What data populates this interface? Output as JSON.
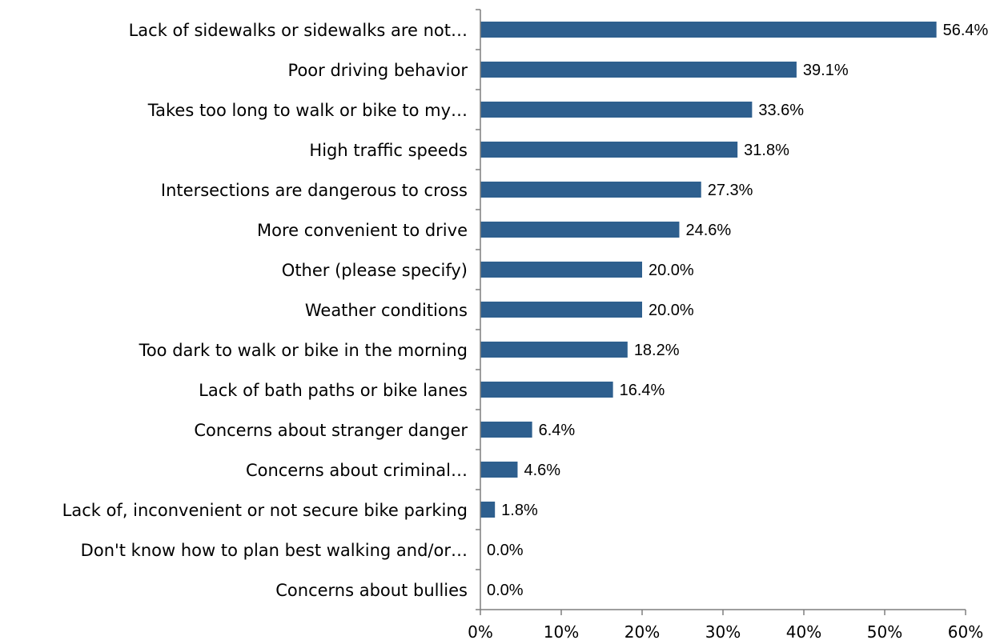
{
  "chart_data": {
    "type": "bar",
    "orientation": "horizontal",
    "categories": [
      "Lack of sidewalks or sidewalks are not…",
      "Poor driving behavior",
      "Takes too long to walk or bike to my…",
      "High traffic speeds",
      "Intersections are dangerous to cross",
      "More convenient to drive",
      "Other (please specify)",
      "Weather conditions",
      "Too dark to walk or bike in the morning",
      "Lack of bath paths or bike lanes",
      "Concerns about stranger danger",
      "Concerns about criminal…",
      "Lack of, inconvenient or not secure bike parking",
      "Don't know how to plan best walking and/or…",
      "Concerns about bullies"
    ],
    "values": [
      56.4,
      39.1,
      33.6,
      31.8,
      27.3,
      24.6,
      20.0,
      20.0,
      18.2,
      16.4,
      6.4,
      4.6,
      1.8,
      0.0,
      0.0
    ],
    "data_labels": [
      "56.4%",
      "39.1%",
      "33.6%",
      "31.8%",
      "27.3%",
      "24.6%",
      "20.0%",
      "20.0%",
      "18.2%",
      "16.4%",
      "6.4%",
      "4.6%",
      "1.8%",
      "0.0%",
      "0.0%"
    ],
    "x_ticks": [
      "0%",
      "10%",
      "20%",
      "30%",
      "40%",
      "50%",
      "60%"
    ],
    "xlim": [
      0,
      60
    ],
    "title": "",
    "xlabel": "",
    "ylabel": "",
    "grid": false,
    "legend": "none",
    "bar_color": "#2E5F8E"
  }
}
